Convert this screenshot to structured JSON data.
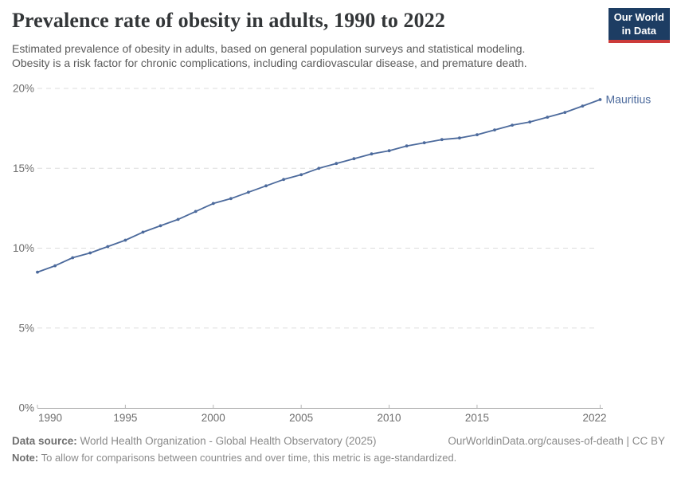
{
  "header": {
    "title": "Prevalence rate of obesity in adults, 1990 to 2022",
    "subtitle_line1": "Estimated prevalence of obesity in adults, based on general population surveys and statistical modeling.",
    "subtitle_line2": "Obesity is a risk factor for chronic complications, including cardiovascular disease, and premature death.",
    "logo": {
      "line1": "Our World",
      "line2": "in Data",
      "bg_color": "#1d3d63",
      "accent_color": "#cc3b3a"
    }
  },
  "chart_data": {
    "type": "line",
    "title": "Prevalence rate of obesity in adults, 1990 to 2022",
    "x": [
      1990,
      1991,
      1992,
      1993,
      1994,
      1995,
      1996,
      1997,
      1998,
      1999,
      2000,
      2001,
      2002,
      2003,
      2004,
      2005,
      2006,
      2007,
      2008,
      2009,
      2010,
      2011,
      2012,
      2013,
      2014,
      2015,
      2016,
      2017,
      2018,
      2019,
      2020,
      2021,
      2022
    ],
    "series": [
      {
        "name": "Mauritius",
        "color": "#4c6a9c",
        "values": [
          8.5,
          8.9,
          9.4,
          9.7,
          10.1,
          10.5,
          11.0,
          11.4,
          11.8,
          12.3,
          12.8,
          13.1,
          13.5,
          13.9,
          14.3,
          14.6,
          15.0,
          15.3,
          15.6,
          15.9,
          16.1,
          16.4,
          16.6,
          16.8,
          16.9,
          17.1,
          17.4,
          17.7,
          17.9,
          18.2,
          18.5,
          18.9,
          19.3
        ]
      }
    ],
    "xlabel": "",
    "ylabel": "",
    "xlim": [
      1990,
      2022
    ],
    "ylim": [
      0,
      20
    ],
    "x_ticks": [
      1990,
      1995,
      2000,
      2005,
      2010,
      2015,
      2022
    ],
    "y_ticks": [
      0,
      5,
      10,
      15,
      20
    ],
    "y_tick_labels": [
      "0%",
      "5%",
      "10%",
      "15%",
      "20%"
    ],
    "grid": "horizontal-dashed",
    "legend_position": "end-of-line-label"
  },
  "footer": {
    "data_source_label": "Data source:",
    "data_source": "World Health Organization - Global Health Observatory (2025)",
    "attribution": "OurWorldinData.org/causes-of-death | CC BY",
    "note_label": "Note:",
    "note": "To allow for comparisons between countries and over time, this metric is age-standardized."
  },
  "colors": {
    "series_blue": "#4c6a9c",
    "title_text": "#333638",
    "subtitle_text": "#5b5b5b",
    "axis_label": "#6e6e6e",
    "gridline": "#dddddd",
    "axis_line": "#a5a5a5",
    "footer_text": "#8a8a8a"
  }
}
